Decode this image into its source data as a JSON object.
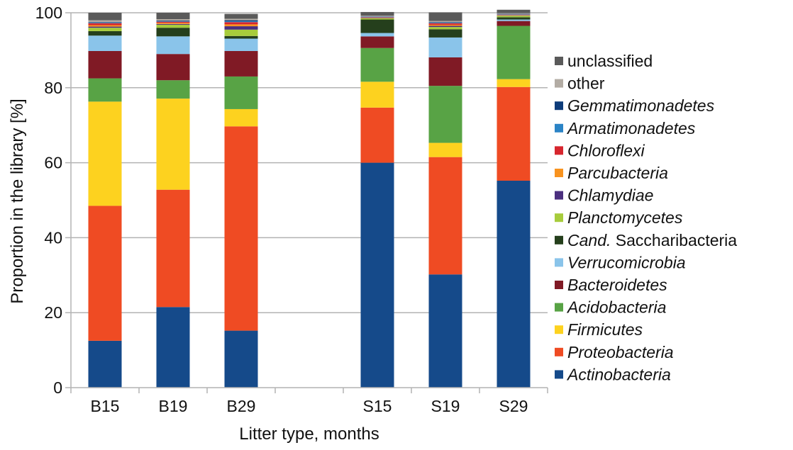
{
  "chart_data": {
    "type": "bar",
    "stacked": true,
    "xlabel": "Litter type, months",
    "ylabel": "Proportion in the library [%]",
    "ylim": [
      0,
      100
    ],
    "yticks": [
      0,
      20,
      40,
      60,
      80,
      100
    ],
    "grid": true,
    "legend_position": "right",
    "categories": [
      "B15",
      "B19",
      "B29",
      "",
      "S15",
      "S19",
      "S29"
    ],
    "series": [
      {
        "name": "Actinobacteria",
        "italic": true,
        "color": "#154a8a",
        "values": [
          12.5,
          21.5,
          15.2,
          0,
          60.0,
          30.2,
          55.2
        ]
      },
      {
        "name": "Proteobacteria",
        "italic": true,
        "color": "#ef4b23",
        "values": [
          36.0,
          31.3,
          54.5,
          0,
          14.7,
          31.3,
          25.0
        ]
      },
      {
        "name": "Firmicutes",
        "italic": true,
        "color": "#fdd21f",
        "values": [
          27.8,
          24.3,
          4.6,
          0,
          6.9,
          3.8,
          2.1
        ]
      },
      {
        "name": "Acidobacteria",
        "italic": true,
        "color": "#58a345",
        "values": [
          6.2,
          4.9,
          8.7,
          0,
          9.0,
          15.2,
          14.2
        ]
      },
      {
        "name": "Bacteroidetes",
        "italic": true,
        "color": "#801a25",
        "values": [
          7.3,
          7.0,
          6.8,
          0,
          3.1,
          7.6,
          1.3
        ]
      },
      {
        "name": "Verrucomicrobia",
        "italic": true,
        "color": "#8ac4ea",
        "values": [
          4.1,
          4.7,
          3.3,
          0,
          0.9,
          5.3,
          0.4
        ]
      },
      {
        "name": "Cand. Saccharibacteria",
        "italic_part": "Cand.",
        "rest": " Saccharibacteria",
        "color": "#253f1c",
        "values": [
          1.2,
          2.3,
          0.7,
          0,
          3.6,
          2.2,
          0.6
        ]
      },
      {
        "name": "Planctomycetes",
        "italic": true,
        "color": "#a7cc3c",
        "values": [
          0.9,
          0.8,
          1.7,
          0,
          0.3,
          0.6,
          0.4
        ]
      },
      {
        "name": "Chlamydiae",
        "italic": true,
        "color": "#4b2f7f",
        "values": [
          0.3,
          0.2,
          0.9,
          0,
          0.1,
          0.3,
          0.1
        ]
      },
      {
        "name": "Parcubacteria",
        "italic": true,
        "color": "#f8931f",
        "values": [
          0.4,
          0.3,
          0.5,
          0,
          0.1,
          0.3,
          0.1
        ]
      },
      {
        "name": "Chloroflexi",
        "italic": true,
        "color": "#d7262e",
        "values": [
          0.5,
          0.3,
          0.6,
          0,
          0.1,
          0.4,
          0.1
        ]
      },
      {
        "name": "Armatimonadetes",
        "italic": true,
        "color": "#2b84c6",
        "values": [
          0.1,
          0.1,
          0.2,
          0,
          0.1,
          0.1,
          0.1
        ]
      },
      {
        "name": "Gemmatimonadetes",
        "italic": true,
        "color": "#0d3c7a",
        "values": [
          0.2,
          0.2,
          0.3,
          0,
          0.1,
          0.2,
          0.1
        ]
      },
      {
        "name": "other",
        "italic": false,
        "color": "#b3aca4",
        "values": [
          0.5,
          0.4,
          0.4,
          0,
          0.2,
          0.3,
          0.2
        ]
      },
      {
        "name": "unclassified",
        "italic": false,
        "color": "#5a5a5a",
        "values": [
          2.0,
          1.7,
          1.3,
          0,
          1.0,
          2.3,
          0.9
        ]
      }
    ]
  }
}
